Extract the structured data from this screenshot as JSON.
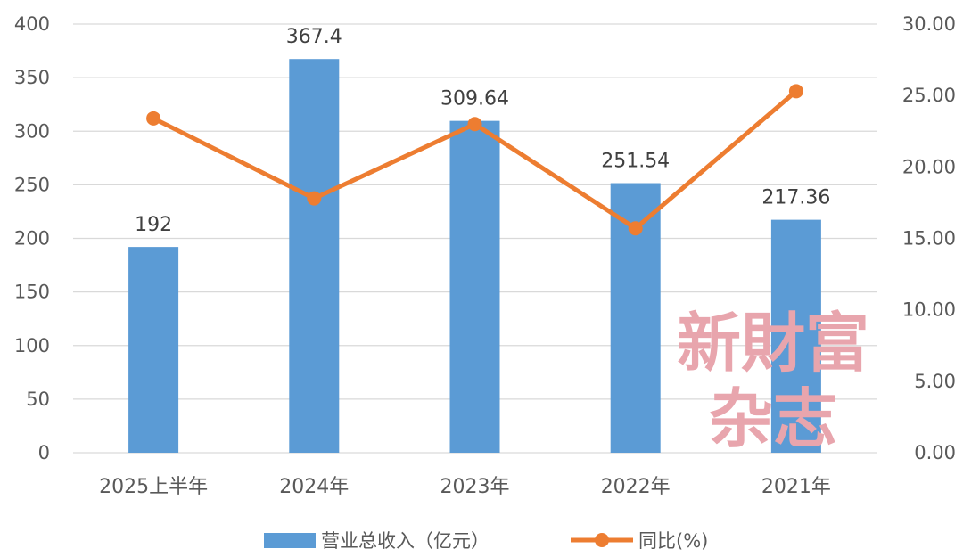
{
  "chart_data": {
    "type": "bar",
    "categories": [
      "2025上半年",
      "2024年",
      "2023年",
      "2022年",
      "2021年"
    ],
    "series": [
      {
        "name": "营业总收入（亿元）",
        "type": "bar",
        "axis": "left",
        "color": "#5b9bd5",
        "values": [
          192,
          367.4,
          309.64,
          251.54,
          217.36
        ],
        "labels": [
          "192",
          "367.4",
          "309.64",
          "251.54",
          "217.36"
        ]
      },
      {
        "name": "同比(%)",
        "type": "line",
        "axis": "right",
        "color": "#ed7d31",
        "values": [
          23.4,
          17.8,
          23.0,
          15.7,
          25.3
        ]
      }
    ],
    "y_left": {
      "ticks": [
        "0",
        "50",
        "100",
        "150",
        "200",
        "250",
        "300",
        "350",
        "400"
      ],
      "ylim": [
        0,
        400
      ]
    },
    "y_right": {
      "ticks": [
        "0.00",
        "5.00",
        "10.00",
        "15.00",
        "20.00",
        "25.00",
        "30.00"
      ],
      "ylim": [
        0,
        30
      ]
    },
    "grid": true,
    "legend": "bottom"
  },
  "watermark": {
    "line1": "新財富",
    "line2": "杂志"
  }
}
